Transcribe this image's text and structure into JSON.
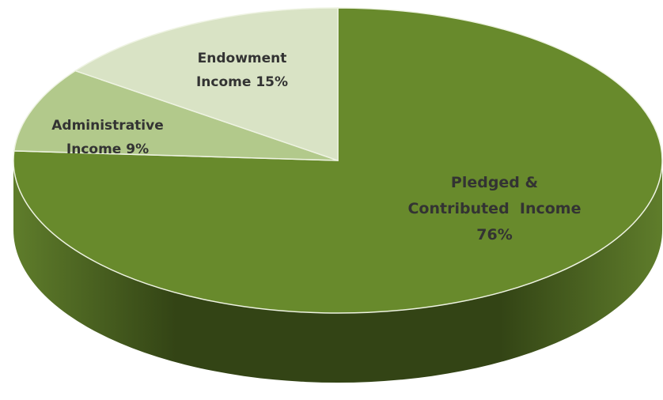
{
  "chart_data": {
    "type": "pie",
    "style": "3d",
    "slices": [
      {
        "name": "Pledged & Contributed Income",
        "value": 76,
        "label_lines": [
          "Pledged &",
          "Contributed  Income",
          "76%"
        ],
        "color": "#688a2c"
      },
      {
        "name": "Administrative Income",
        "value": 9,
        "label_lines": [
          "Administrative",
          "Income 9%"
        ],
        "color": "#b2c98b"
      },
      {
        "name": "Endowment Income",
        "value": 15,
        "label_lines": [
          "Endowment",
          "Income 15%"
        ],
        "color": "#d9e3c5"
      }
    ],
    "start_angle_deg": 0,
    "direction": "clockwise",
    "legend": "none",
    "colors": {
      "side_dark": "#334415",
      "side_light": "#5f7d2b",
      "label_text": "#333333",
      "edge": "#eef3e2"
    }
  }
}
